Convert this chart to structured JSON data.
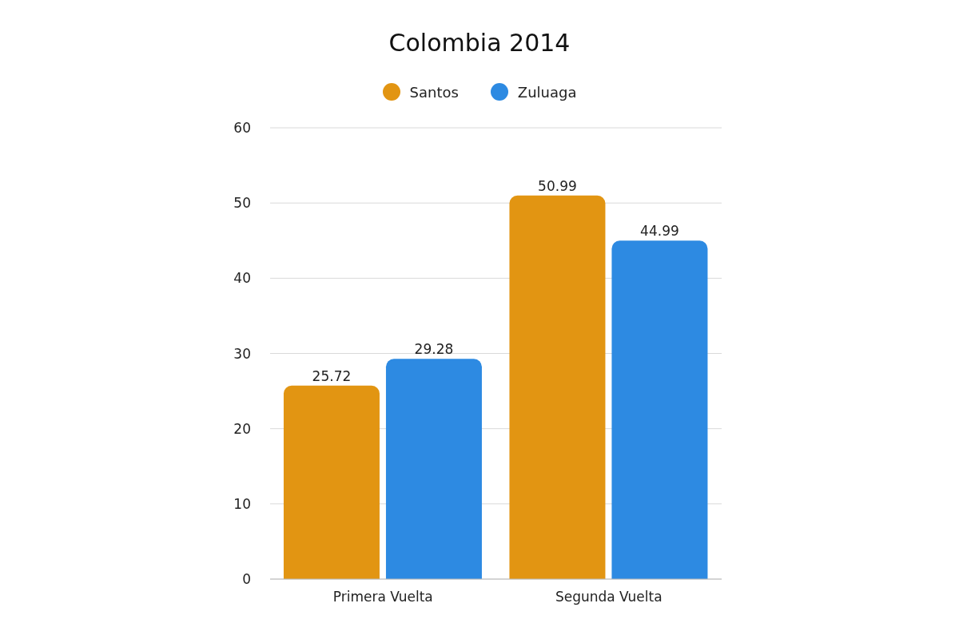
{
  "chart_data": {
    "type": "bar",
    "title": "Colombia 2014",
    "categories": [
      "Primera Vuelta",
      "Segunda Vuelta"
    ],
    "series": [
      {
        "name": "Santos",
        "color": "#e29512",
        "values": [
          25.72,
          50.99
        ]
      },
      {
        "name": "Zuluaga",
        "color": "#2d8ae2",
        "values": [
          29.28,
          44.99
        ]
      }
    ],
    "ylim": [
      0,
      60
    ],
    "yticks": [
      0,
      10,
      20,
      30,
      40,
      50,
      60
    ],
    "grid": "y",
    "legend": "top",
    "data_labels": true
  }
}
